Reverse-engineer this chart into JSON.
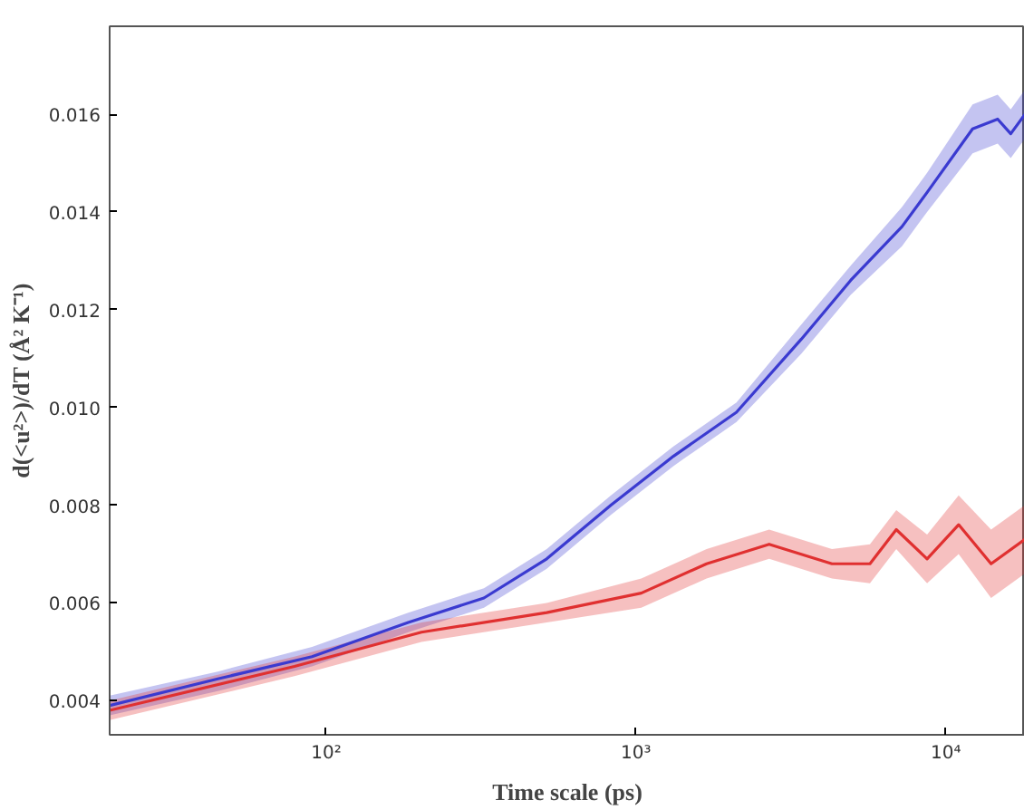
{
  "chart_data": {
    "type": "line",
    "xlabel": "Time scale (ps)",
    "ylabel": "d(<u²>)/dT (Å² K⁻¹)",
    "log": "x",
    "grid": false,
    "marker": "none",
    "line_style": "solid",
    "xlim": [
      20,
      18000
    ],
    "ylim": [
      0.0033,
      0.0178
    ],
    "xticks": [
      {
        "value": 100,
        "label": "10²"
      },
      {
        "value": 1000,
        "label": "10³"
      },
      {
        "value": 10000,
        "label": "10⁴"
      }
    ],
    "yticks": [
      0.004,
      0.006,
      0.008,
      {
        "value": 0.01,
        "label": "0.010"
      },
      0.012,
      0.014,
      0.016
    ],
    "series": [
      {
        "color": "#3a3ad0",
        "x": [
          20,
          45,
          90,
          184,
          323,
          515,
          830,
          1320,
          2110,
          3420,
          4930,
          7220,
          8700,
          12200,
          14700,
          16200,
          18000
        ],
        "values": [
          0.0039,
          0.00445,
          0.0049,
          0.0056,
          0.0061,
          0.0069,
          0.008,
          0.009,
          0.0099,
          0.0114,
          0.0126,
          0.0137,
          0.0144,
          0.0157,
          0.0159,
          0.0156,
          0.016
        ],
        "lower": [
          0.0037,
          0.0042,
          0.0047,
          0.0054,
          0.0059,
          0.0067,
          0.0078,
          0.0088,
          0.0097,
          0.0111,
          0.0123,
          0.0133,
          0.014,
          0.0152,
          0.0154,
          0.0151,
          0.0155
        ],
        "upper": [
          0.0041,
          0.0046,
          0.0051,
          0.0058,
          0.0063,
          0.0071,
          0.0082,
          0.0092,
          0.0101,
          0.0117,
          0.0129,
          0.0141,
          0.0148,
          0.0162,
          0.0164,
          0.0161,
          0.0165
        ]
      },
      {
        "color": "#e03030",
        "x": [
          20,
          79,
          203,
          515,
          1040,
          1690,
          2690,
          4290,
          5690,
          6920,
          8700,
          11000,
          14000,
          18000
        ],
        "values": [
          0.0038,
          0.0047,
          0.0054,
          0.0058,
          0.0062,
          0.0068,
          0.0072,
          0.0068,
          0.0068,
          0.0075,
          0.0069,
          0.0076,
          0.0068,
          0.0073
        ],
        "lower": [
          0.0036,
          0.0045,
          0.0052,
          0.0056,
          0.0059,
          0.0065,
          0.0069,
          0.0065,
          0.0064,
          0.0071,
          0.0064,
          0.007,
          0.0061,
          0.0066
        ],
        "upper": [
          0.004,
          0.0049,
          0.0056,
          0.006,
          0.0065,
          0.0071,
          0.0075,
          0.0071,
          0.0072,
          0.0079,
          0.0074,
          0.0082,
          0.0075,
          0.008
        ]
      }
    ]
  }
}
